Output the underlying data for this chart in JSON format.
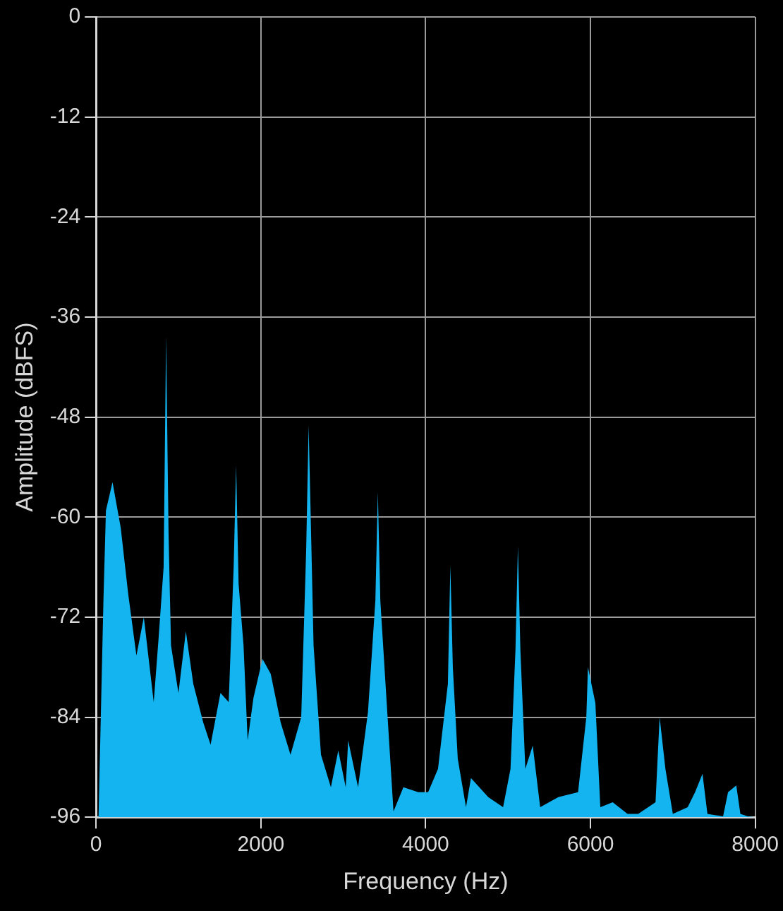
{
  "chart_data": {
    "type": "area",
    "xlabel": "Frequency (Hz)",
    "ylabel": "Amplitude (dBFS)",
    "xlim": [
      0,
      8000
    ],
    "xticks": [
      0,
      2000,
      4000,
      6000,
      8000
    ],
    "ylim": [
      -96,
      0
    ],
    "yticks": [
      -96,
      -84,
      -72,
      -60,
      -48,
      -36,
      -24,
      -12,
      0
    ],
    "grid": true,
    "legend": false,
    "marker": "none",
    "series": [
      {
        "color": "#14b4f0",
        "x": [
          0,
          30,
          90,
          120,
          200,
          300,
          390,
          490,
          580,
          700,
          760,
          820,
          850,
          880,
          910,
          1000,
          1090,
          1180,
          1300,
          1390,
          1510,
          1610,
          1670,
          1700,
          1730,
          1790,
          1840,
          1910,
          2020,
          2120,
          2240,
          2360,
          2490,
          2550,
          2580,
          2610,
          2640,
          2730,
          2850,
          2940,
          3030,
          3060,
          3180,
          3300,
          3390,
          3420,
          3450,
          3520,
          3610,
          3730,
          3910,
          4030,
          4150,
          4270,
          4300,
          4330,
          4390,
          4490,
          4550,
          4760,
          4940,
          5030,
          5090,
          5120,
          5150,
          5210,
          5300,
          5390,
          5610,
          5850,
          5950,
          5970,
          6060,
          6120,
          6270,
          6450,
          6580,
          6790,
          6820,
          6840,
          6910,
          7000,
          7180,
          7270,
          7360,
          7420,
          7610,
          7670,
          7770,
          7820,
          7910,
          8000
        ],
        "values": [
          -96,
          -96,
          -69.8,
          -59.2,
          -55.8,
          -61.3,
          -69.2,
          -76.6,
          -72,
          -82.2,
          -74.4,
          -66,
          -38.3,
          -62,
          -75.4,
          -81.1,
          -73.7,
          -80,
          -84.6,
          -87.3,
          -81.1,
          -82.2,
          -66,
          -53.8,
          -68,
          -75.4,
          -86.8,
          -81.7,
          -77,
          -78.8,
          -84.6,
          -88.5,
          -84,
          -64,
          -49,
          -62,
          -75.4,
          -88.5,
          -92.4,
          -88,
          -92.4,
          -86.8,
          -92.4,
          -83.4,
          -70,
          -57,
          -70,
          -81.1,
          -95.3,
          -92.4,
          -93,
          -93,
          -90.2,
          -80,
          -65.8,
          -78,
          -89,
          -94.8,
          -91.3,
          -93.6,
          -94.8,
          -90.2,
          -76,
          -63.5,
          -76,
          -90.2,
          -87.4,
          -94.8,
          -93.6,
          -93,
          -84,
          -78,
          -82.3,
          -94.8,
          -94.2,
          -95.6,
          -95.6,
          -94.2,
          -88,
          -84,
          -90.2,
          -95.6,
          -94.8,
          -93,
          -90.8,
          -95.6,
          -95.9,
          -93,
          -92.2,
          -95.6,
          -95.9,
          -96
        ]
      }
    ]
  }
}
